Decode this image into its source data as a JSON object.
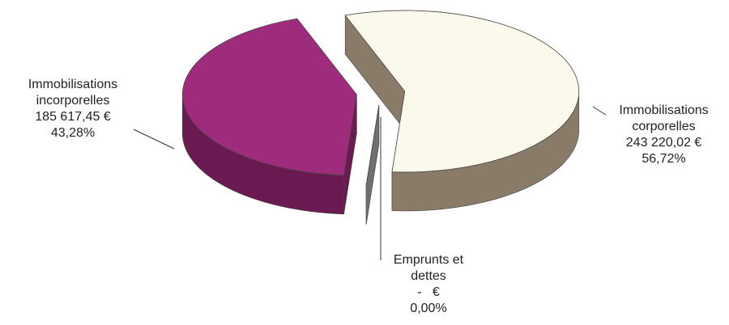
{
  "chart_data": {
    "type": "pie",
    "categories": [
      "Immobilisations corporelles",
      "Emprunts et dettes",
      "Immobilisations incorporelles"
    ],
    "values": [
      56.72,
      0,
      43.28
    ],
    "value_labels": [
      "56,72%",
      "0,00%",
      "43,28%"
    ],
    "amounts": [
      243220.02,
      0,
      185617.45
    ],
    "amount_labels": [
      "243 220,02 €",
      "-   €",
      "185 617,45 €"
    ],
    "colors": [
      "#fbf8ec",
      "#a0a0a0",
      "#9e2b7c"
    ],
    "side_colors": [
      "#8a7a68",
      "#707070",
      "#6a1a50"
    ]
  }
}
